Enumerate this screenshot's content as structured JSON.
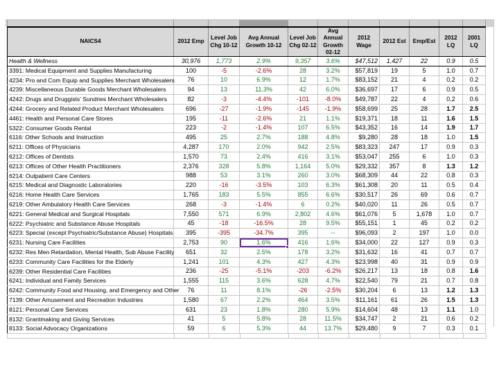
{
  "app": "spreadsheet",
  "colors": {
    "positive_value": "#1e7b34",
    "negative_value": "#9c0006",
    "header_background": "#d9d9d9",
    "gridline": "#c6c6c6",
    "selection": "#7030a0"
  },
  "table": {
    "columns": [
      {
        "key": "naics",
        "label": "NAICS4"
      },
      {
        "key": "emp2012",
        "label": "2012 Emp"
      },
      {
        "key": "chg1012",
        "label": "Level Job\nChg 10-12"
      },
      {
        "key": "growth1012",
        "label": "Avg Annual\nGrowth 10-12"
      },
      {
        "key": "chg0212",
        "label": "Level Job\nChg 02-12"
      },
      {
        "key": "growth0212",
        "label": "Avg Annual\nGrowth 02-12"
      },
      {
        "key": "wage2012",
        "label": "2012\nWage"
      },
      {
        "key": "est2012",
        "label": "2012 Est"
      },
      {
        "key": "empest",
        "label": "Emp/Est"
      },
      {
        "key": "lq2012",
        "label": "2012 LQ"
      },
      {
        "key": "lq2001",
        "label": "2001 LQ"
      }
    ],
    "summary_row": [
      "Health & Wellness",
      "30,976",
      "1,773",
      "2.9%",
      "9,357",
      "3.6%",
      "$47,512",
      "1,427",
      "22",
      "0.9",
      "0.5"
    ],
    "rows": [
      [
        "3391: Medical Equipment and Supplies Manufacturing",
        "100",
        "-5",
        "-2.6%",
        "28",
        "3.2%",
        "$57,819",
        "19",
        "5",
        "1.0",
        "0.7"
      ],
      [
        "4234: Pro and Com Equip and Supplies Merchant Wholesalers",
        "76",
        "10",
        "6.9%",
        "12",
        "1.7%",
        "$83,152",
        "21",
        "4",
        "0.2",
        "0.2"
      ],
      [
        "4239: Miscellaneous Durable Goods Merchant Wholesalers",
        "94",
        "13",
        "11.3%",
        "42",
        "6.0%",
        "$36,697",
        "17",
        "6",
        "0.9",
        "0.5"
      ],
      [
        "4242: Drugs and Druggists' Sundries Merchant Wholesalers",
        "82",
        "-3",
        "-4.4%",
        "-101",
        "-8.0%",
        "$49,787",
        "22",
        "4",
        "0.2",
        "0.6"
      ],
      [
        "4244: Grocery and Related Product Merchant Wholesalers",
        "696",
        "-27",
        "-1.9%",
        "-145",
        "-1.9%",
        "$58,699",
        "25",
        "28",
        "1.7",
        "2.5"
      ],
      [
        "4461: Health and Personal Care Stores",
        "195",
        "-11",
        "-2.6%",
        "21",
        "1.1%",
        "$19,371",
        "18",
        "11",
        "1.6",
        "1.5"
      ],
      [
        "5322: Consumer Goods Rental",
        "223",
        "-2",
        "-1.4%",
        "107",
        "6.5%",
        "$43,352",
        "16",
        "14",
        "1.9",
        "1.7"
      ],
      [
        "6116: Other Schools and Instruction",
        "495",
        "25",
        "2.7%",
        "188",
        "4.8%",
        "$9,280",
        "28",
        "18",
        "1.0",
        "1.5"
      ],
      [
        "6211: Offices of Physicians",
        "4,287",
        "170",
        "2.0%",
        "942",
        "2.5%",
        "$83,323",
        "247",
        "17",
        "0.9",
        "0.3"
      ],
      [
        "6212: Offices of Dentists",
        "1,570",
        "73",
        "2.4%",
        "416",
        "3.1%",
        "$53,047",
        "255",
        "6",
        "1.0",
        "0.3"
      ],
      [
        "6213: Offices of Other Health Practitioners",
        "2,376",
        "328",
        "5.8%",
        "1,164",
        "5.0%",
        "$29,332",
        "357",
        "8",
        "1.3",
        "1.2"
      ],
      [
        "6214: Outpatient Care Centers",
        "988",
        "53",
        "3.1%",
        "260",
        "3.0%",
        "$68,309",
        "44",
        "22",
        "0.8",
        "0.3"
      ],
      [
        "6215: Medical and Diagnostic Laboratories",
        "220",
        "-16",
        "-3.5%",
        "103",
        "6.3%",
        "$61,308",
        "20",
        "11",
        "0.5",
        "0.4"
      ],
      [
        "6216: Home Health Care Services",
        "1,765",
        "183",
        "5.5%",
        "855",
        "6.6%",
        "$30,517",
        "26",
        "69",
        "0.6",
        "0.7"
      ],
      [
        "6219: Other Ambulatory Health Care Services",
        "268",
        "-3",
        "-1.4%",
        "6",
        "0.2%",
        "$40,020",
        "11",
        "26",
        "0.5",
        "0.7"
      ],
      [
        "6221: General Medical and Surgical Hospitals",
        "7,550",
        "571",
        "6.9%",
        "2,802",
        "4.6%",
        "$61,076",
        "5",
        "1,678",
        "1.0",
        "0.7"
      ],
      [
        "6222: Psychiatric and Substance Abuse Hospitals",
        "45",
        "-18",
        "-16.5%",
        "28",
        "9.5%",
        "$55,151",
        "1",
        "45",
        "0.2",
        "0.2"
      ],
      [
        "6223: Special (except Psychiatric/Substance Abuse) Hospitals",
        "395",
        "-395",
        "-34.7%",
        "395",
        "--",
        "$96,093",
        "2",
        "197",
        "1.0",
        "0.0"
      ],
      [
        "6231: Nursing Care Facilities",
        "2,753",
        "90",
        "1.6%",
        "416",
        "1.6%",
        "$34,000",
        "22",
        "127",
        "0.9",
        "0.3"
      ],
      [
        "6232: Res Men Retardation, Mental Health, Sub Abuse Facility",
        "651",
        "32",
        "2.5%",
        "178",
        "3.2%",
        "$31,632",
        "16",
        "41",
        "0.7",
        "0.7"
      ],
      [
        "6233: Community Care Facilities for the Elderly",
        "1,241",
        "101",
        "4.3%",
        "427",
        "4.3%",
        "$23,998",
        "40",
        "31",
        "0.9",
        "0.9"
      ],
      [
        "6239: Other Residential Care Facilities",
        "236",
        "-25",
        "-5.1%",
        "-203",
        "-6.2%",
        "$26,217",
        "13",
        "18",
        "0.8",
        "1.6"
      ],
      [
        "6241: Individual and Family Services",
        "1,555",
        "115",
        "3.6%",
        "628",
        "4.7%",
        "$22,540",
        "79",
        "21",
        "0.7",
        "0.8"
      ],
      [
        "6242: Community Food and Housing, and Emergency and Other",
        "76",
        "11",
        "8.1%",
        "-26",
        "-2.5%",
        "$30,204",
        "6",
        "13",
        "1.2",
        "1.3"
      ],
      [
        "7139: Other Amusement and Recreation Industries",
        "1,580",
        "67",
        "2.2%",
        "464",
        "3.5%",
        "$11,161",
        "61",
        "26",
        "1.5",
        "1.3"
      ],
      [
        "8121: Personal Care Services",
        "631",
        "23",
        "1.8%",
        "280",
        "5.9%",
        "$14,604",
        "48",
        "13",
        "1.1",
        "1.0"
      ],
      [
        "8132: Grantmaking and Giving Services",
        "41",
        "5",
        "5.8%",
        "28",
        "11.5%",
        "$34,747",
        "2",
        "21",
        "0.6",
        "0.2"
      ],
      [
        "8133: Social Advocacy Organizations",
        "59",
        "6",
        "5.3%",
        "44",
        "13.7%",
        "$29,480",
        "9",
        "7",
        "0.3",
        "0.1"
      ]
    ]
  },
  "selection": {
    "row_index": 18,
    "col_index": 3,
    "row_label": "6231: Nursing Care Facilities",
    "column_key": "growth1012",
    "value": "1.6%"
  }
}
